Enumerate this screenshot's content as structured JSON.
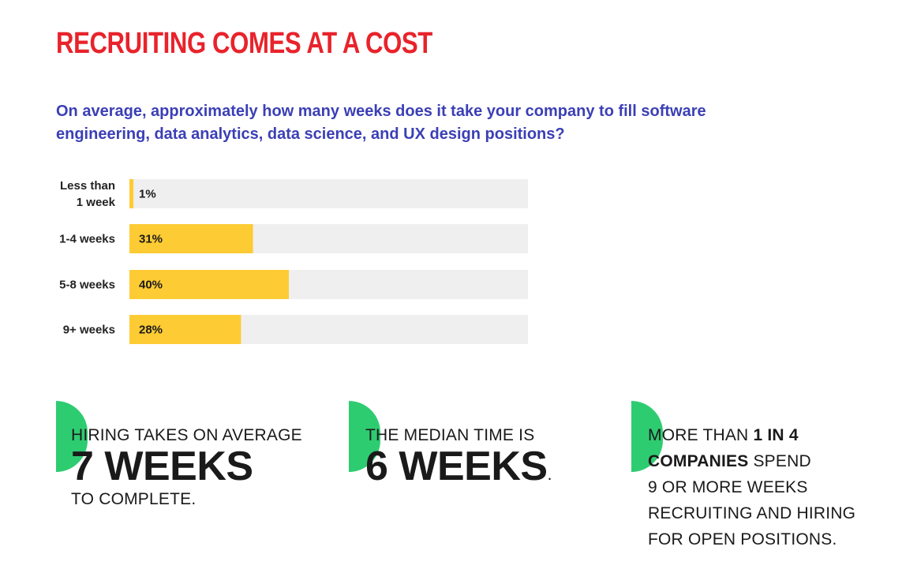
{
  "header": {
    "title": "RECRUITING COMES AT A COST",
    "question": "On average, approximately how many weeks does it take your company to fill software engineering, data analytics, data science, and UX design positions?"
  },
  "colors": {
    "title": "#e8232b",
    "question": "#3b3fb5",
    "bar": "#fdcb33",
    "track": "#efefef",
    "accent": "#2ecc71",
    "text": "#1a1a1a"
  },
  "chart_data": {
    "type": "bar",
    "orientation": "horizontal",
    "title": "",
    "xlabel": "",
    "ylabel": "",
    "categories": [
      "Less than 1 week",
      "1-4 weeks",
      "5-8 weeks",
      "9+ weeks"
    ],
    "category_lines": [
      [
        "Less than",
        "1 week"
      ],
      [
        "1-4 weeks"
      ],
      [
        "5-8 weeks"
      ],
      [
        "9+ weeks"
      ]
    ],
    "values": [
      1,
      31,
      40,
      28
    ],
    "value_labels": [
      "1%",
      "31%",
      "40%",
      "28%"
    ],
    "xlim": [
      0,
      100
    ],
    "grid": false,
    "legend": "none"
  },
  "stats": [
    {
      "line1": "HIRING TAKES ON AVERAGE",
      "big": "7 WEEKS",
      "line2": "TO COMPLETE."
    },
    {
      "line1": "THE MEDIAN TIME IS",
      "big": "6 WEEKS",
      "suffix": "."
    },
    {
      "pre": "MORE THAN ",
      "bold1": "1 IN 4",
      "bold2": "COMPANIES",
      "mid": " SPEND",
      "line3": "9 OR MORE WEEKS",
      "line4": "RECRUITING AND HIRING",
      "line5": "FOR OPEN POSITIONS."
    }
  ]
}
